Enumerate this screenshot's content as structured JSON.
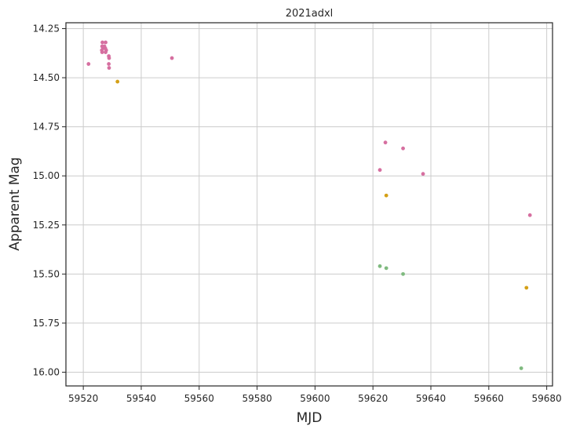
{
  "chart_data": {
    "type": "scatter",
    "title": "2021adxl",
    "xlabel": "MJD",
    "ylabel": "Apparent Mag",
    "xlim": [
      59514,
      59682
    ],
    "ylim": [
      16.07,
      14.22
    ],
    "y_inverted": true,
    "grid": true,
    "xticks": [
      59520,
      59540,
      59560,
      59580,
      59600,
      59620,
      59640,
      59660,
      59680
    ],
    "yticks": [
      14.25,
      14.5,
      14.75,
      15.0,
      15.25,
      15.5,
      15.75,
      16.0
    ],
    "xtick_labels": [
      "59520",
      "59540",
      "59560",
      "59580",
      "59600",
      "59620",
      "59640",
      "59660",
      "59680"
    ],
    "ytick_labels": [
      "14.25",
      "14.50",
      "14.75",
      "15.00",
      "15.25",
      "15.50",
      "15.75",
      "16.00"
    ],
    "series": [
      {
        "color": "#d66fa0",
        "points": [
          [
            59521.8,
            14.43
          ],
          [
            59526.6,
            14.32
          ],
          [
            59527.7,
            14.32
          ],
          [
            59526.5,
            14.34
          ],
          [
            59527.3,
            14.34
          ],
          [
            59526.8,
            14.35
          ],
          [
            59527.6,
            14.35
          ],
          [
            59526.4,
            14.36
          ],
          [
            59527.9,
            14.36
          ],
          [
            59526.5,
            14.37
          ],
          [
            59527.7,
            14.37
          ],
          [
            59528.8,
            14.39
          ],
          [
            59528.9,
            14.4
          ],
          [
            59528.8,
            14.43
          ],
          [
            59528.9,
            14.45
          ],
          [
            59550.6,
            14.4
          ],
          [
            59624.3,
            14.83
          ],
          [
            59630.4,
            14.86
          ],
          [
            59622.4,
            14.97
          ],
          [
            59637.3,
            14.99
          ],
          [
            59674.2,
            15.2
          ]
        ]
      },
      {
        "color": "#d4a017",
        "points": [
          [
            59531.8,
            14.52
          ],
          [
            59624.6,
            15.1
          ],
          [
            59673.0,
            15.57
          ]
        ]
      },
      {
        "color": "#7fba7f",
        "points": [
          [
            59622.4,
            15.46
          ],
          [
            59624.6,
            15.47
          ],
          [
            59630.4,
            15.5
          ],
          [
            59671.2,
            15.98
          ]
        ]
      }
    ]
  }
}
